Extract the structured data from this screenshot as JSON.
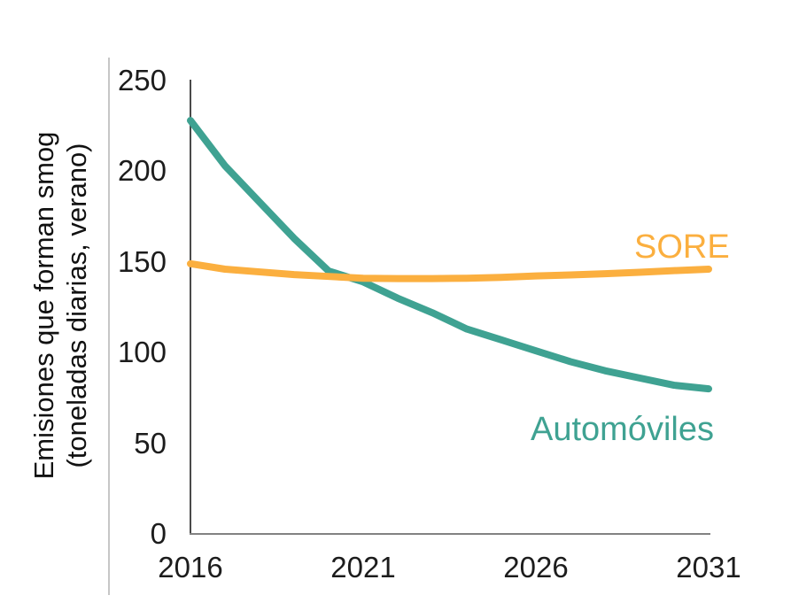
{
  "chart_data": {
    "type": "line",
    "title": "",
    "ylabel_line1": "Emisiones que forman smog",
    "ylabel_line2": "(toneladas diarias, verano)",
    "xlabel": "",
    "x": [
      2016,
      2017,
      2018,
      2019,
      2020,
      2021,
      2022,
      2023,
      2024,
      2025,
      2026,
      2027,
      2028,
      2029,
      2030,
      2031
    ],
    "x_tick_labels": [
      "2016",
      "2021",
      "2026",
      "2031"
    ],
    "y_ticks": [
      0,
      50,
      100,
      150,
      200,
      250
    ],
    "y_tick_labels": [
      "0",
      "50",
      "100",
      "150",
      "200",
      "250"
    ],
    "xlim": [
      2016,
      2031
    ],
    "ylim": [
      0,
      250
    ],
    "grid": "off",
    "legend_position": "inline-labels-on-chart",
    "series": [
      {
        "name": "Automóviles",
        "color": "#3FA292",
        "values": [
          228,
          203,
          183,
          163,
          145,
          139,
          130,
          122,
          113,
          107,
          101,
          95,
          90,
          86,
          82,
          80
        ]
      },
      {
        "name": "SORE",
        "color": "#FBAF3F",
        "values": [
          149,
          146,
          144.5,
          143,
          142,
          141,
          140.8,
          140.8,
          141,
          141.5,
          142.3,
          142.8,
          143.5,
          144.3,
          145.2,
          146
        ]
      }
    ]
  },
  "colors": {
    "automoviles_line": "#3FA292",
    "sore_line": "#FBAF3F",
    "axis_vertical": "#4a4a4a",
    "axis_horizontal": "#828282",
    "tick_text": "#1c1c1c",
    "left_border": "#c7c7c7",
    "background": "#ffffff"
  }
}
